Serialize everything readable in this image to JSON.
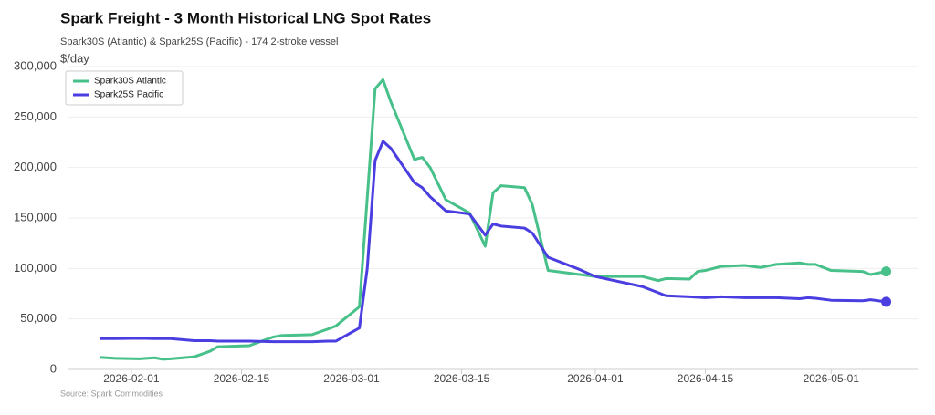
{
  "chart_data": {
    "type": "line",
    "title": "Spark Freight - 3 Month Historical LNG Spot Rates",
    "subtitle": "Spark30S (Atlantic) & Spark25S (Pacific) - 174 2-stroke vessel",
    "y_label": "$/day",
    "source": "Source: Spark Commodities",
    "legend": "upper left",
    "grid": true,
    "x": [
      "2026-01-28",
      "2026-01-30",
      "2026-02-02",
      "2026-02-04",
      "2026-02-05",
      "2026-02-06",
      "2026-02-09",
      "2026-02-11",
      "2026-02-12",
      "2026-02-16",
      "2026-02-19",
      "2026-02-20",
      "2026-02-24",
      "2026-02-26",
      "2026-02-27",
      "2026-03-02",
      "2026-03-03",
      "2026-03-04",
      "2026-03-05",
      "2026-03-06",
      "2026-03-09",
      "2026-03-10",
      "2026-03-11",
      "2026-03-13",
      "2026-03-16",
      "2026-03-18",
      "2026-03-19",
      "2026-03-20",
      "2026-03-23",
      "2026-03-24",
      "2026-03-26",
      "2026-03-30",
      "2026-04-01",
      "2026-04-07",
      "2026-04-09",
      "2026-04-10",
      "2026-04-13",
      "2026-04-14",
      "2026-04-15",
      "2026-04-17",
      "2026-04-20",
      "2026-04-22",
      "2026-04-24",
      "2026-04-27",
      "2026-04-28",
      "2026-04-29",
      "2026-05-01",
      "2026-05-05",
      "2026-05-06",
      "2026-05-08"
    ],
    "series": [
      {
        "name": "Spark30S Atlantic",
        "color": "#48c08a",
        "values": [
          12000,
          11000,
          10500,
          11500,
          10000,
          10500,
          12500,
          18000,
          22500,
          23500,
          32000,
          33500,
          34500,
          40000,
          43000,
          62000,
          170000,
          278000,
          287000,
          265000,
          208000,
          210000,
          200000,
          168000,
          155000,
          122000,
          175000,
          182000,
          180000,
          163000,
          98000,
          94000,
          92000,
          92000,
          88000,
          90000,
          89500,
          97000,
          98000,
          102000,
          103000,
          101000,
          104000,
          105500,
          104000,
          104000,
          98000,
          97000,
          94000,
          97000
        ]
      },
      {
        "name": "Spark25S Pacific",
        "color": "#4b3ee0",
        "values": [
          30500,
          30500,
          30800,
          30500,
          30500,
          30500,
          28500,
          28500,
          28000,
          28000,
          27500,
          27500,
          27500,
          28000,
          28000,
          41000,
          100000,
          207000,
          226000,
          219000,
          185000,
          180000,
          171000,
          157000,
          154000,
          133000,
          144000,
          142000,
          140000,
          135000,
          111000,
          99000,
          92000,
          82000,
          76000,
          73000,
          72000,
          71500,
          71000,
          72000,
          71000,
          71000,
          71000,
          70000,
          71000,
          70500,
          68500,
          68000,
          69000,
          67000
        ]
      }
    ],
    "xlim": [
      "2026-01-24",
      "2026-05-12"
    ],
    "xticks": [
      "2026-02-01",
      "2026-02-15",
      "2026-03-01",
      "2026-03-15",
      "2026-04-01",
      "2026-04-15",
      "2026-05-01"
    ],
    "ylim": [
      0,
      300000
    ],
    "yticks": [
      0,
      {
        "value": 50000,
        "label": "50,000"
      },
      {
        "value": 100000,
        "label": "100,000"
      },
      {
        "value": 150000,
        "label": "150,000"
      },
      {
        "value": 200000,
        "label": "200,000"
      },
      {
        "value": 250000,
        "label": "250,000"
      },
      {
        "value": 300000,
        "label": "300,000"
      }
    ]
  }
}
